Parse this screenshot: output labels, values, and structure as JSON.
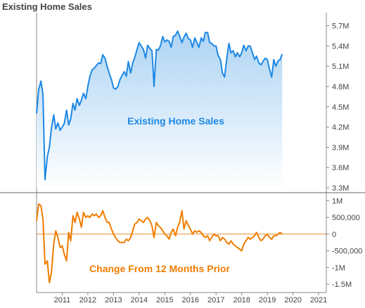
{
  "title": "Existing Home Sales",
  "colors": {
    "sales_line": "#1e88e5",
    "sales_fill_top": "#a9d2f3",
    "sales_fill_bottom": "#ffffff",
    "sales_label": "#1e88e5",
    "change_line": "#f07d00",
    "change_label": "#f07d00",
    "zero_line": "#e68a2e",
    "axis": "#888888",
    "text": "#444444"
  },
  "chart_data": [
    {
      "type": "area",
      "annotation": "Existing Home Sales",
      "ylim": [
        3300000,
        5800000
      ],
      "yticks": [
        {
          "value": 5700000,
          "label": "5.7M"
        },
        {
          "value": 5400000,
          "label": "5.4M"
        },
        {
          "value": 5100000,
          "label": "5.1M"
        },
        {
          "value": 4800000,
          "label": "4.8M"
        },
        {
          "value": 4500000,
          "label": "4.5M"
        },
        {
          "value": 4200000,
          "label": "4.2M"
        },
        {
          "value": 3900000,
          "label": "3.9M"
        },
        {
          "value": 3600000,
          "label": "3.6M"
        },
        {
          "value": 3300000,
          "label": "3.3M"
        }
      ],
      "series": [
        {
          "x": [
            2010.0,
            2010.08,
            2010.17,
            2010.25,
            2010.33,
            2010.42,
            2010.5,
            2010.58,
            2010.67,
            2010.75,
            2010.83,
            2010.92,
            2011.0,
            2011.08,
            2011.17,
            2011.25,
            2011.33,
            2011.42,
            2011.5,
            2011.58,
            2011.67,
            2011.75,
            2011.83,
            2011.92,
            2012.0,
            2012.08,
            2012.17,
            2012.25,
            2012.33,
            2012.42,
            2012.5,
            2012.58,
            2012.67,
            2012.75,
            2012.83,
            2012.92,
            2013.0,
            2013.08,
            2013.17,
            2013.25,
            2013.33,
            2013.42,
            2013.5,
            2013.58,
            2013.67,
            2013.75,
            2013.83,
            2013.92,
            2014.0,
            2014.08,
            2014.17,
            2014.25,
            2014.33,
            2014.42,
            2014.5,
            2014.58,
            2014.67,
            2014.75,
            2014.83,
            2014.92,
            2015.0,
            2015.08,
            2015.17,
            2015.25,
            2015.33,
            2015.42,
            2015.5,
            2015.58,
            2015.67,
            2015.75,
            2015.83,
            2015.92,
            2016.0,
            2016.08,
            2016.17,
            2016.25,
            2016.33,
            2016.42,
            2016.5,
            2016.58,
            2016.67,
            2016.75,
            2016.83,
            2016.92,
            2017.0,
            2017.08,
            2017.17,
            2017.25,
            2017.33,
            2017.42,
            2017.5,
            2017.58,
            2017.67,
            2017.75,
            2017.83,
            2017.92,
            2018.0,
            2018.08,
            2018.17,
            2018.25,
            2018.33,
            2018.42,
            2018.5,
            2018.58,
            2018.67,
            2018.75,
            2018.83,
            2018.92,
            2019.0,
            2019.08,
            2019.17,
            2019.25,
            2019.33,
            2019.42,
            2019.5,
            2019.58
          ],
          "values": [
            4400000,
            4750000,
            4880000,
            4680000,
            3420000,
            3760000,
            3900000,
            4180000,
            4380000,
            4170000,
            4260000,
            4150000,
            4200000,
            4250000,
            4450000,
            4230000,
            4320000,
            4550000,
            4450000,
            4620000,
            4520000,
            4600000,
            4700000,
            4620000,
            4800000,
            4950000,
            5050000,
            5070000,
            5110000,
            5150000,
            5140000,
            5270000,
            5220000,
            5100000,
            5000000,
            4900000,
            4780000,
            4760000,
            4800000,
            4900000,
            4960000,
            5020000,
            4950000,
            5170000,
            5000000,
            5150000,
            5230000,
            5350000,
            5450000,
            5400000,
            5350000,
            5220000,
            5410000,
            5360000,
            5330000,
            4800000,
            5350000,
            5340000,
            5400000,
            5540000,
            5460000,
            5490000,
            5470000,
            5380000,
            5540000,
            5560000,
            5620000,
            5550000,
            5450000,
            5530000,
            5590000,
            5510000,
            5490000,
            5380000,
            5520000,
            5450000,
            5380000,
            5520000,
            5470000,
            5600000,
            5600000,
            5450000,
            5440000,
            5400000,
            5400000,
            5260000,
            5200000,
            5000000,
            4940000,
            5220000,
            5440000,
            5300000,
            5330000,
            5240000,
            5300000,
            5240000,
            5300000,
            5410000,
            5330000,
            5400000,
            5400000,
            5300000,
            5200000,
            5250000,
            5150000,
            5120000,
            5170000,
            5220000,
            5200000,
            5060000,
            4940000,
            5200000,
            5100000,
            5180000,
            5200000,
            5280000
          ]
        }
      ]
    },
    {
      "type": "line",
      "annotation": "Change From 12 Months Prior",
      "ylim": [
        -1600000,
        1050000
      ],
      "yticks": [
        {
          "value": 1000000,
          "label": "1M"
        },
        {
          "value": 500000,
          "label": "500,000"
        },
        {
          "value": 0,
          "label": "0"
        },
        {
          "value": -500000,
          "label": "-500,000"
        },
        {
          "value": -1000000,
          "label": "-1M"
        },
        {
          "value": -1500000,
          "label": "-1.5M"
        }
      ],
      "xlim": [
        2010.0,
        2021.3
      ],
      "xticks": [
        {
          "value": 2011,
          "label": "2011"
        },
        {
          "value": 2012,
          "label": "2012"
        },
        {
          "value": 2013,
          "label": "2013"
        },
        {
          "value": 2014,
          "label": "2014"
        },
        {
          "value": 2015,
          "label": "2015"
        },
        {
          "value": 2016,
          "label": "2016"
        },
        {
          "value": 2017,
          "label": "2017"
        },
        {
          "value": 2018,
          "label": "2018"
        },
        {
          "value": 2019,
          "label": "2019"
        },
        {
          "value": 2020,
          "label": "2020"
        },
        {
          "value": 2021,
          "label": "2021"
        }
      ],
      "series": [
        {
          "x": [
            2010.0,
            2010.08,
            2010.17,
            2010.25,
            2010.33,
            2010.42,
            2010.5,
            2010.58,
            2010.67,
            2010.75,
            2010.83,
            2010.92,
            2011.0,
            2011.08,
            2011.17,
            2011.25,
            2011.33,
            2011.42,
            2011.5,
            2011.58,
            2011.67,
            2011.75,
            2011.83,
            2011.92,
            2012.0,
            2012.08,
            2012.17,
            2012.25,
            2012.33,
            2012.42,
            2012.5,
            2012.58,
            2012.67,
            2012.75,
            2012.83,
            2012.92,
            2013.0,
            2013.08,
            2013.17,
            2013.25,
            2013.33,
            2013.42,
            2013.5,
            2013.58,
            2013.67,
            2013.75,
            2013.83,
            2013.92,
            2014.0,
            2014.08,
            2014.17,
            2014.25,
            2014.33,
            2014.42,
            2014.5,
            2014.58,
            2014.67,
            2014.75,
            2014.83,
            2014.92,
            2015.0,
            2015.08,
            2015.17,
            2015.25,
            2015.33,
            2015.42,
            2015.5,
            2015.58,
            2015.67,
            2015.75,
            2015.83,
            2015.92,
            2016.0,
            2016.08,
            2016.17,
            2016.25,
            2016.33,
            2016.42,
            2016.5,
            2016.58,
            2016.67,
            2016.75,
            2016.83,
            2016.92,
            2017.0,
            2017.08,
            2017.17,
            2017.25,
            2017.33,
            2017.42,
            2017.5,
            2017.58,
            2017.67,
            2017.75,
            2017.83,
            2017.92,
            2018.0,
            2018.08,
            2018.17,
            2018.25,
            2018.33,
            2018.42,
            2018.5,
            2018.58,
            2018.67,
            2018.75,
            2018.83,
            2018.92,
            2019.0,
            2019.08,
            2019.17,
            2019.25,
            2019.33,
            2019.42,
            2019.5,
            2019.58
          ],
          "values": [
            400000,
            900000,
            850000,
            450000,
            -900000,
            -800000,
            -1450000,
            -1150000,
            -300000,
            100000,
            -100000,
            -400000,
            -350000,
            -600000,
            -800000,
            50000,
            -200000,
            550000,
            350000,
            650000,
            450000,
            200000,
            650000,
            500000,
            550000,
            500000,
            600000,
            550000,
            600000,
            500000,
            550000,
            700000,
            500000,
            350000,
            350000,
            150000,
            0,
            -100000,
            -200000,
            -250000,
            -250000,
            -250000,
            -150000,
            -200000,
            -100000,
            100000,
            300000,
            350000,
            450000,
            400000,
            350000,
            450000,
            500000,
            400000,
            250000,
            -100000,
            350000,
            250000,
            200000,
            100000,
            0,
            -50000,
            -150000,
            50000,
            150000,
            -50000,
            200000,
            350000,
            700000,
            150000,
            400000,
            250000,
            150000,
            0,
            100000,
            50000,
            100000,
            50000,
            -50000,
            -100000,
            -50000,
            -200000,
            -100000,
            0,
            -50000,
            -50000,
            -200000,
            -100000,
            -150000,
            -250000,
            -300000,
            -200000,
            -300000,
            -350000,
            -400000,
            -450000,
            -500000,
            -300000,
            -200000,
            -100000,
            -150000,
            -100000,
            -50000,
            50000,
            -100000,
            -200000,
            -150000,
            -50000,
            0,
            -100000,
            -150000,
            -50000,
            -50000,
            0,
            50000,
            0
          ]
        }
      ]
    }
  ]
}
